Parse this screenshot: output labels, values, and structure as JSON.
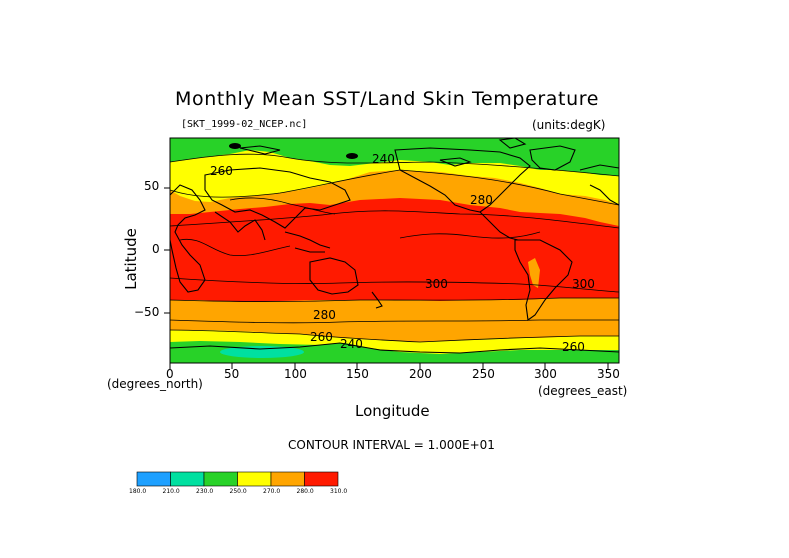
{
  "title": "Monthly Mean SST/Land Skin Temperature",
  "file_label": "[SKT_1999-02_NCEP.nc]",
  "units_label": "(units:degK)",
  "axes": {
    "xlabel": "Longitude",
    "ylabel": "Latitude",
    "x_units": "(degrees_east)",
    "y_units": "(degrees_north)",
    "x_ticks": [
      "0",
      "50",
      "100",
      "150",
      "200",
      "250",
      "300",
      "350"
    ],
    "y_ticks": [
      "50",
      "0",
      "−50"
    ]
  },
  "contour_interval": "CONTOUR INTERVAL = 1.000E+01",
  "contour_labels": [
    "260",
    "240",
    "280",
    "300",
    "300",
    "280",
    "260",
    "240",
    "260"
  ],
  "colorbar": {
    "ticks": [
      "180.0",
      "210.0",
      "230.0",
      "250.0",
      "270.0",
      "280.0",
      "310.0"
    ],
    "colors": [
      "#1ea0ff",
      "#00e0a0",
      "#28d228",
      "#ffff00",
      "#ffa500",
      "#ff1a00"
    ]
  },
  "chart_data": {
    "type": "heatmap",
    "title": "Monthly Mean SST/Land Skin Temperature",
    "xlabel": "Longitude",
    "ylabel": "Latitude",
    "xlim": [
      0,
      360
    ],
    "ylim": [
      -90,
      90
    ],
    "levels": [
      180,
      210,
      230,
      250,
      270,
      280,
      310
    ],
    "contour_interval": 10,
    "bands": [
      {
        "lat_range": [
          -90,
          -75
        ],
        "range_degK": [
          210,
          250
        ]
      },
      {
        "lat_range": [
          -75,
          -55
        ],
        "range_degK": [
          270,
          280
        ]
      },
      {
        "lat_range": [
          -55,
          -40
        ],
        "range_degK": [
          280,
          290
        ]
      },
      {
        "lat_range": [
          -40,
          35
        ],
        "range_degK": [
          290,
          310
        ]
      },
      {
        "lat_range": [
          35,
          60
        ],
        "range_degK": [
          270,
          290
        ]
      },
      {
        "lat_range": [
          60,
          90
        ],
        "range_degK": [
          230,
          270
        ]
      }
    ]
  }
}
